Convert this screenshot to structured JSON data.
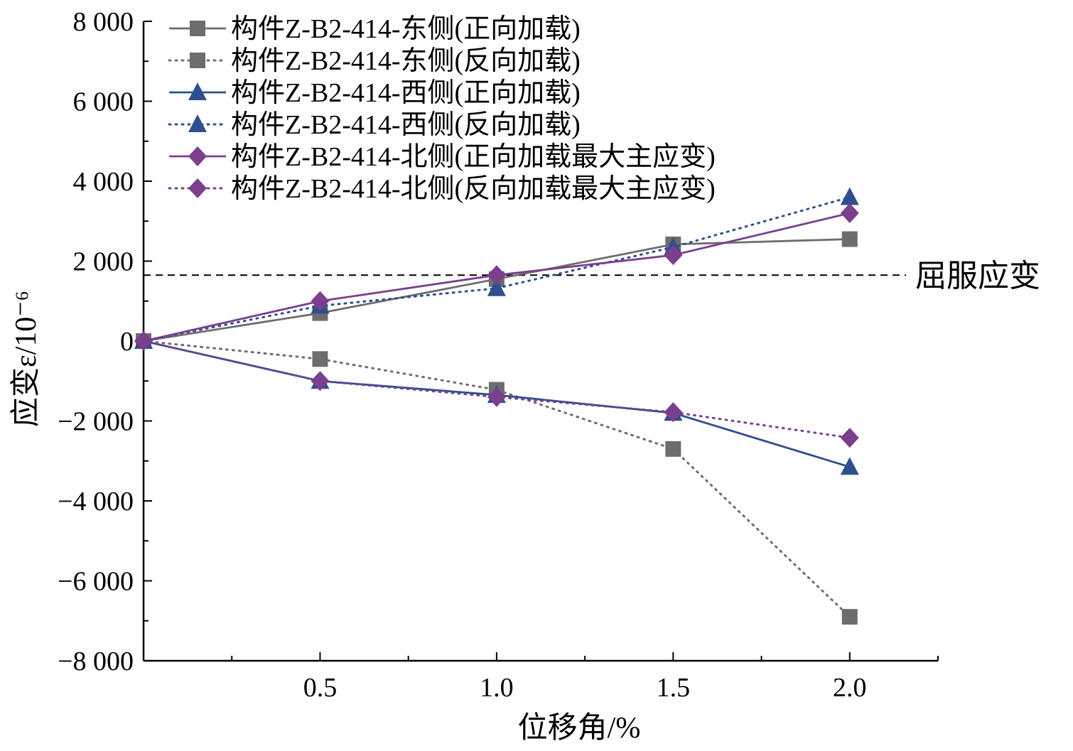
{
  "chart_data": {
    "type": "line",
    "title": "",
    "xlabel": "位移角/%",
    "ylabel": "应变ε/10⁻⁶",
    "xlim": [
      0,
      2.25
    ],
    "ylim": [
      -8000,
      8000
    ],
    "x_ticks": [
      {
        "value": 0.5,
        "label": "0.5"
      },
      {
        "value": 1.0,
        "label": "1.0"
      },
      {
        "value": 1.5,
        "label": "1.5"
      },
      {
        "value": 2.0,
        "label": "2.0"
      }
    ],
    "y_ticks": [
      {
        "value": 8000,
        "label": "8 000"
      },
      {
        "value": 6000,
        "label": "6 000"
      },
      {
        "value": 4000,
        "label": "4 000"
      },
      {
        "value": 2000,
        "label": "2 000"
      },
      {
        "value": 0,
        "label": "0"
      },
      {
        "value": -2000,
        "label": "−2 000"
      },
      {
        "value": -4000,
        "label": "−4 000"
      },
      {
        "value": -6000,
        "label": "−6 000"
      },
      {
        "value": -8000,
        "label": "−8 000"
      }
    ],
    "legend_position": "top-left",
    "x": [
      0,
      0.5,
      1.0,
      1.5,
      2.0
    ],
    "series": [
      {
        "name": "构件Z-B2-414-东侧(正向加载)",
        "color": "#6d6d6d",
        "marker": "square",
        "dash": "solid",
        "values": [
          0,
          700,
          1550,
          2420,
          2550
        ]
      },
      {
        "name": "构件Z-B2-414-东侧(反向加载)",
        "color": "#6d6d6d",
        "marker": "square",
        "dash": "dotted",
        "values": [
          0,
          -450,
          -1220,
          -2700,
          -6900
        ]
      },
      {
        "name": "构件Z-B2-414-西侧(正向加载)",
        "color": "#2e4f8f",
        "marker": "triangle",
        "dash": "solid",
        "values": [
          0,
          -1000,
          -1350,
          -1800,
          -3150
        ]
      },
      {
        "name": "构件Z-B2-414-西侧(反向加载)",
        "color": "#2e4f8f",
        "marker": "triangle",
        "dash": "dotted",
        "values": [
          0,
          880,
          1320,
          2350,
          3600
        ]
      },
      {
        "name": "构件Z-B2-414-北侧(正向加载最大主应变)",
        "color": "#7b3f8e",
        "marker": "diamond",
        "dash": "solid",
        "values": [
          0,
          1000,
          1650,
          2150,
          3200
        ]
      },
      {
        "name": "构件Z-B2-414-北侧(反向加载最大主应变)",
        "color": "#7b3f8e",
        "marker": "diamond",
        "dash": "dotted",
        "values": [
          0,
          -1000,
          -1400,
          -1780,
          -2420
        ]
      }
    ],
    "reference_line": {
      "y": 1650,
      "label": "屈服应变",
      "color": "#000000",
      "dash": "dashed"
    }
  }
}
